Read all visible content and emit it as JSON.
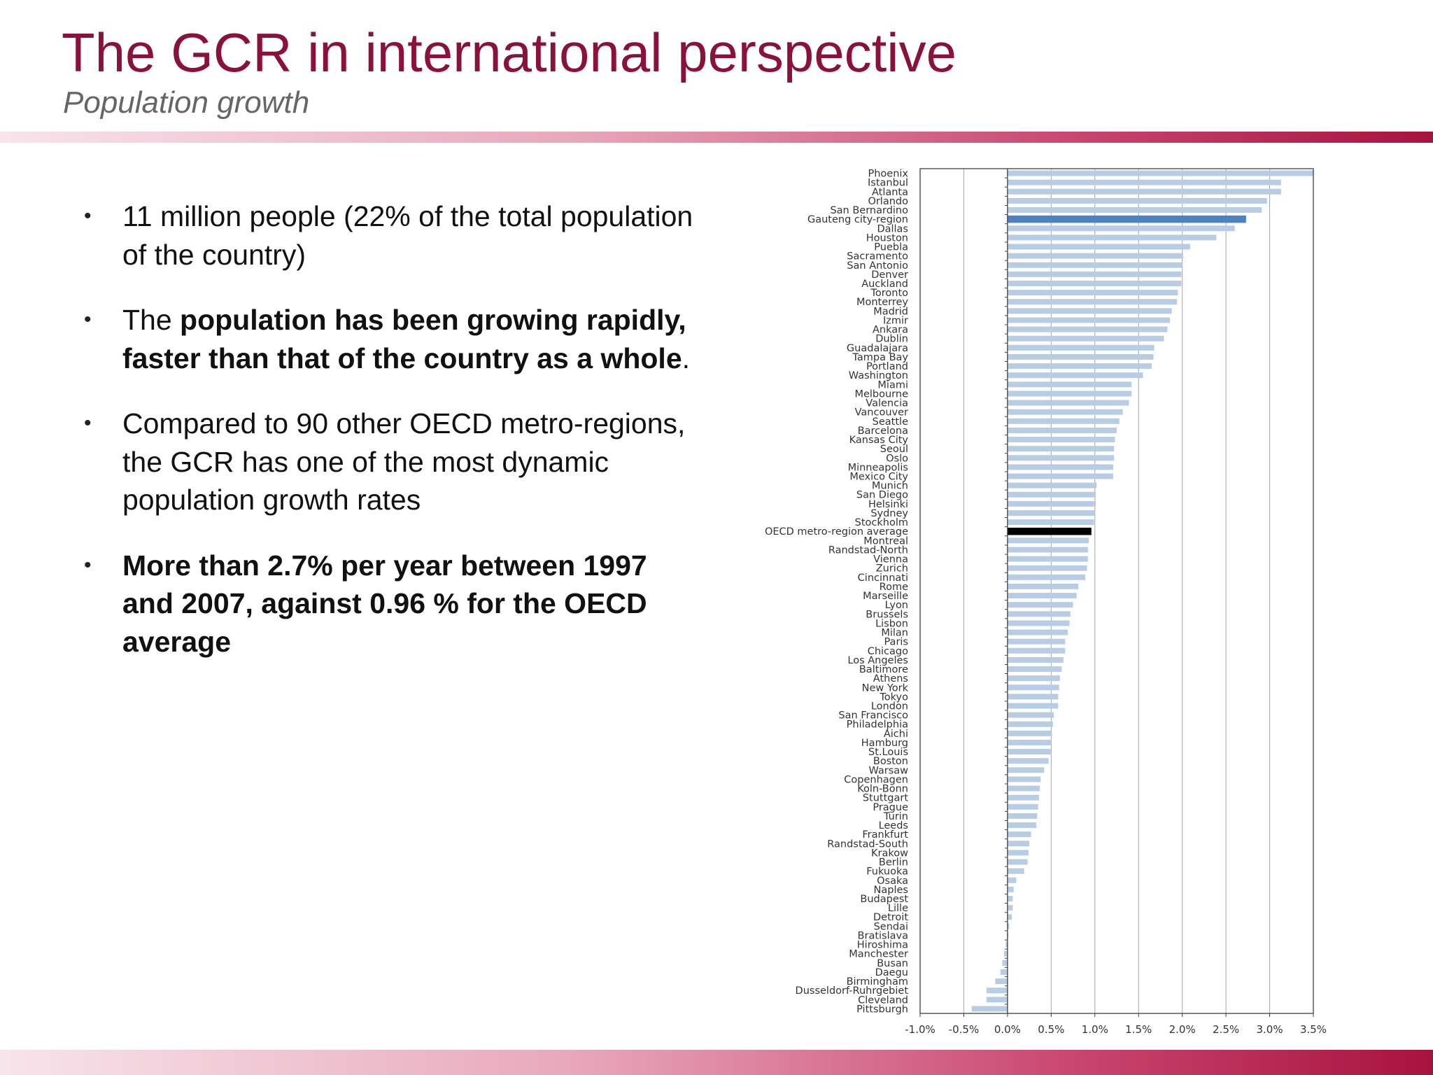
{
  "slide": {
    "title": "The GCR in international perspective",
    "subtitle": "Population growth"
  },
  "bullets": [
    {
      "parts": [
        {
          "text": "11 million people (22% of the total population of the country)",
          "bold": false
        }
      ]
    },
    {
      "parts": [
        {
          "text": "The ",
          "bold": false
        },
        {
          "text": "population has been growing rapidly, faster than that of the country as a whole",
          "bold": true
        },
        {
          "text": ".",
          "bold": false
        }
      ]
    },
    {
      "parts": [
        {
          "text": "Compared to 90 other OECD metro-regions, the GCR has one of the most dynamic population growth rates",
          "bold": false
        }
      ]
    },
    {
      "parts": [
        {
          "text": "More than 2.7% per year between 1997 and 2007, against 0.96 % for the OECD average",
          "bold": true
        }
      ]
    }
  ],
  "chart_data": {
    "type": "bar",
    "orientation": "horizontal",
    "title": "",
    "xlabel": "",
    "ylabel": "",
    "xlim": [
      -1.0,
      3.5
    ],
    "x_ticks": [
      "-1.0%",
      "-0.5%",
      "0.0%",
      "0.5%",
      "1.0%",
      "1.5%",
      "2.0%",
      "2.5%",
      "3.0%",
      "3.5%"
    ],
    "grid": "vertical",
    "colors": {
      "default": "#b8cce4",
      "highlight": "#4f81bd",
      "average": "#000000"
    },
    "highlight_category": "Gauteng city-region",
    "average_category": "OECD metro-region average",
    "unit": "%",
    "categories": [
      "Phoenix",
      "Istanbul",
      "Atlanta",
      "Orlando",
      "San Bernardino",
      "Gauteng city-region",
      "Dallas",
      "Houston",
      "Puebla",
      "Sacramento",
      "San Antonio",
      "Denver",
      "Auckland",
      "Toronto",
      "Monterrey",
      "Madrid",
      "Izmir",
      "Ankara",
      "Dublin",
      "Guadalajara",
      "Tampa Bay",
      "Portland",
      "Washington",
      "Miami",
      "Melbourne",
      "Valencia",
      "Vancouver",
      "Seattle",
      "Barcelona",
      "Kansas City",
      "Seoul",
      "Oslo",
      "Minneapolis",
      "Mexico City",
      "Munich",
      "San Diego",
      "Helsinki",
      "Sydney",
      "Stockholm",
      "OECD metro-region average",
      "Montreal",
      "Randstad-North",
      "Vienna",
      "Zurich",
      "Cincinnati",
      "Rome",
      "Marseille",
      "Lyon",
      "Brussels",
      "Lisbon",
      "Milan",
      "Paris",
      "Chicago",
      "Los Angeles",
      "Baltimore",
      "Athens",
      "New York",
      "Tokyo",
      "London",
      "San Francisco",
      "Philadelphia",
      "Aichi",
      "Hamburg",
      "St.Louis",
      "Boston",
      "Warsaw",
      "Copenhagen",
      "Koln-Bonn",
      "Stuttgart",
      "Prague",
      "Turin",
      "Leeds",
      "Frankfurt",
      "Randstad-South",
      "Krakow",
      "Berlin",
      "Fukuoka",
      "Osaka",
      "Naples",
      "Budapest",
      "Lille",
      "Detroit",
      "Sendai",
      "Bratislava",
      "Hiroshima",
      "Manchester",
      "Busan",
      "Daegu",
      "Birmingham",
      "Dusseldorf-Ruhrgebiet",
      "Cleveland",
      "Pittsburgh"
    ],
    "values": [
      3.5,
      3.13,
      3.13,
      2.97,
      2.91,
      2.73,
      2.6,
      2.39,
      2.09,
      2.01,
      2.0,
      1.99,
      1.99,
      1.95,
      1.94,
      1.88,
      1.86,
      1.83,
      1.79,
      1.68,
      1.67,
      1.65,
      1.55,
      1.42,
      1.42,
      1.39,
      1.32,
      1.28,
      1.25,
      1.23,
      1.22,
      1.22,
      1.21,
      1.21,
      1.02,
      1.01,
      1.01,
      1.0,
      0.99,
      0.96,
      0.93,
      0.92,
      0.92,
      0.91,
      0.89,
      0.81,
      0.79,
      0.75,
      0.72,
      0.71,
      0.69,
      0.66,
      0.66,
      0.64,
      0.62,
      0.6,
      0.59,
      0.58,
      0.58,
      0.53,
      0.52,
      0.51,
      0.5,
      0.5,
      0.47,
      0.42,
      0.38,
      0.37,
      0.36,
      0.35,
      0.34,
      0.33,
      0.27,
      0.25,
      0.24,
      0.23,
      0.19,
      0.1,
      0.07,
      0.06,
      0.06,
      0.05,
      0.02,
      0.01,
      -0.02,
      -0.04,
      -0.06,
      -0.08,
      -0.14,
      -0.24,
      -0.24,
      -0.41
    ]
  }
}
